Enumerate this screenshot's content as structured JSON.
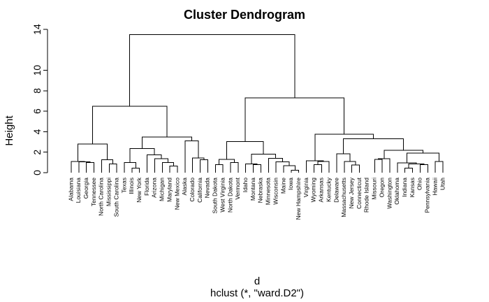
{
  "chart_data": {
    "type": "dendrogram",
    "title": "Cluster Dendrogram",
    "ylabel": "Height",
    "xlabel": "d",
    "subtitle": "hclust (*, \"ward.D2\")",
    "ylim": [
      0,
      14
    ],
    "y_ticks": [
      0,
      2,
      4,
      6,
      8,
      10,
      14
    ],
    "leaves": [
      "Alabama",
      "Louisiana",
      "Georgia",
      "Tennessee",
      "North Carolina",
      "Mississippi",
      "South Carolina",
      "Texas",
      "Illinois",
      "New York",
      "Florida",
      "Arizona",
      "Michigan",
      "Maryland",
      "New Mexico",
      "Alaska",
      "Colorado",
      "California",
      "Nevada",
      "South Dakota",
      "West Virginia",
      "North Dakota",
      "Vermont",
      "Idaho",
      "Montana",
      "Nebraska",
      "Minnesota",
      "Wisconsin",
      "Maine",
      "Iowa",
      "New Hampshire",
      "Virginia",
      "Wyoming",
      "Arkansas",
      "Kentucky",
      "Delaware",
      "Massachusetts",
      "New Jersey",
      "Connecticut",
      "Rhode Island",
      "Missouri",
      "Oregon",
      "Washington",
      "Oklahoma",
      "Indiana",
      "Kansas",
      "Ohio",
      "Pennsylvania",
      "Hawaii",
      "Utah"
    ],
    "merges": [
      [
        -3,
        -4,
        1.0
      ],
      [
        1,
        -2,
        1.05
      ],
      [
        -1,
        2,
        1.1
      ],
      [
        -6,
        -7,
        0.85
      ],
      [
        -5,
        4,
        1.25
      ],
      [
        3,
        5,
        2.8
      ],
      [
        -9,
        -10,
        0.45
      ],
      [
        -8,
        7,
        1.0
      ],
      [
        -14,
        -15,
        0.65
      ],
      [
        -13,
        9,
        1.0
      ],
      [
        -12,
        10,
        1.35
      ],
      [
        -11,
        11,
        1.75
      ],
      [
        8,
        12,
        2.35
      ],
      [
        -18,
        -19,
        1.25
      ],
      [
        -17,
        14,
        1.45
      ],
      [
        -16,
        15,
        3.1
      ],
      [
        13,
        16,
        3.5
      ],
      [
        6,
        17,
        6.5
      ],
      [
        -20,
        -21,
        0.8
      ],
      [
        -22,
        -23,
        1.0
      ],
      [
        19,
        20,
        1.3
      ],
      [
        -25,
        -26,
        0.8
      ],
      [
        -24,
        22,
        0.85
      ],
      [
        -30,
        -31,
        0.25
      ],
      [
        -29,
        24,
        0.7
      ],
      [
        -28,
        25,
        1.05
      ],
      [
        -27,
        26,
        1.4
      ],
      [
        23,
        27,
        1.8
      ],
      [
        21,
        28,
        3.05
      ],
      [
        -33,
        -34,
        0.8
      ],
      [
        30,
        -35,
        1.1
      ],
      [
        -32,
        31,
        1.15
      ],
      [
        -38,
        -39,
        0.75
      ],
      [
        -37,
        33,
        1.1
      ],
      [
        -36,
        34,
        1.85
      ],
      [
        -41,
        -42,
        1.3
      ],
      [
        36,
        -43,
        1.35
      ],
      [
        -45,
        -46,
        0.45
      ],
      [
        -47,
        -48,
        0.8
      ],
      [
        38,
        39,
        0.85
      ],
      [
        -44,
        40,
        0.95
      ],
      [
        -49,
        -50,
        1.1
      ],
      [
        41,
        42,
        1.9
      ],
      [
        37,
        43,
        2.2
      ],
      [
        35,
        44,
        3.3
      ],
      [
        32,
        45,
        3.75
      ],
      [
        29,
        46,
        7.3
      ],
      [
        18,
        47,
        13.5
      ]
    ]
  }
}
